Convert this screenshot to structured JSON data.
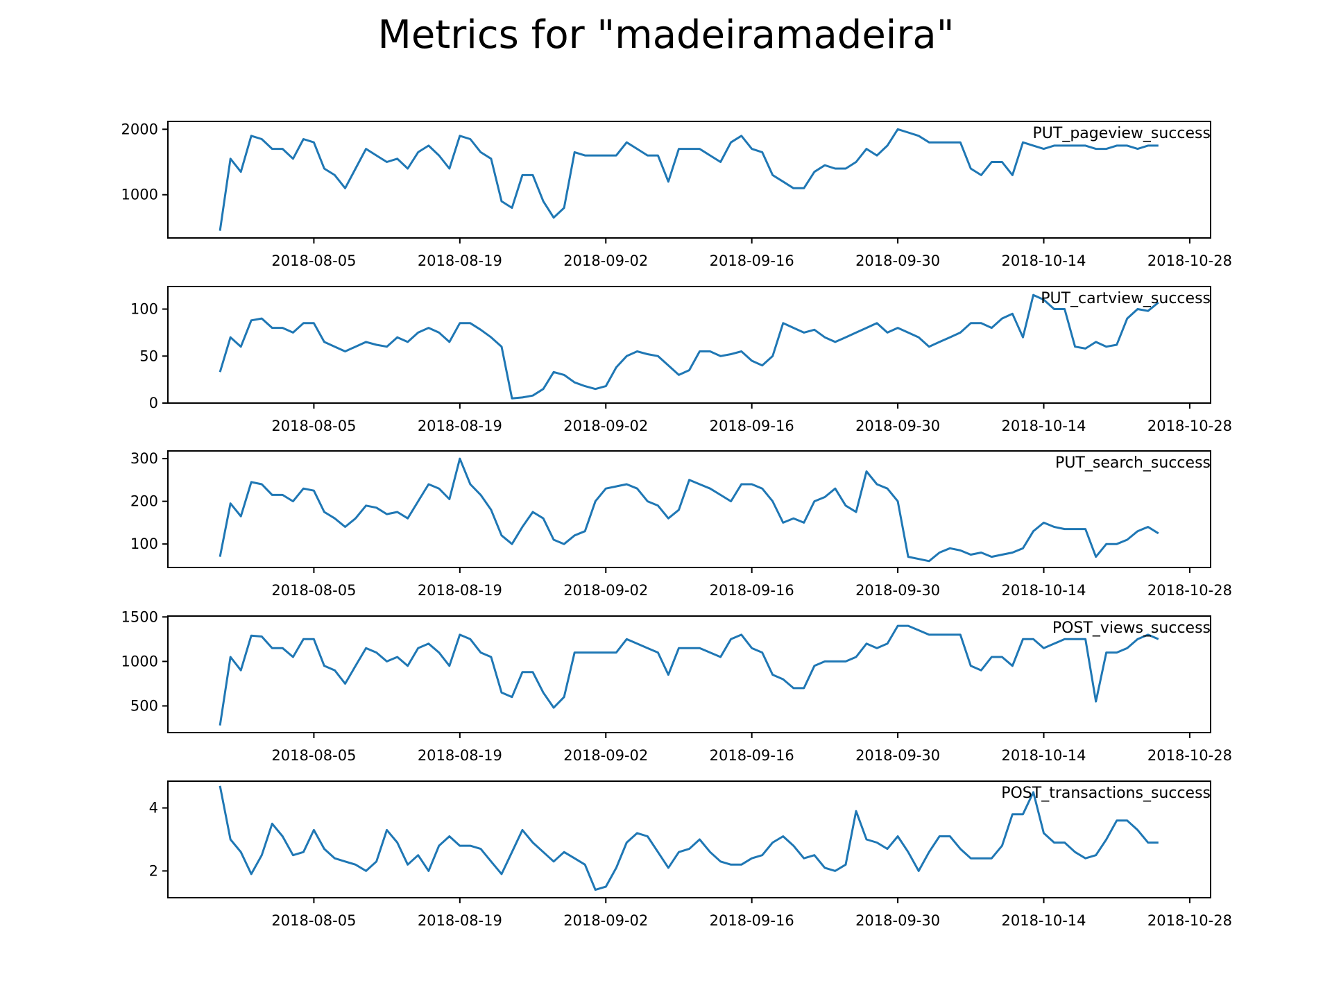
{
  "title": "Metrics for \"madeiramadeira\"",
  "colors": {
    "line": "#1f77b4",
    "axis": "#000000"
  },
  "chart_data": [
    {
      "type": "line",
      "name": "PUT_pageview_success",
      "x_ticks": [
        "2018-08-05",
        "2018-08-19",
        "2018-09-02",
        "2018-09-16",
        "2018-09-30",
        "2018-10-14",
        "2018-10-28"
      ],
      "y_ticks": [
        1000,
        2000
      ],
      "ylim": [
        340,
        2120
      ],
      "x_range": [
        "2018-07-22",
        "2018-10-30"
      ],
      "x": [
        "2018-07-27",
        "2018-07-28",
        "2018-07-29",
        "2018-07-30",
        "2018-07-31",
        "2018-08-01",
        "2018-08-02",
        "2018-08-03",
        "2018-08-04",
        "2018-08-05",
        "2018-08-06",
        "2018-08-07",
        "2018-08-08",
        "2018-08-09",
        "2018-08-10",
        "2018-08-11",
        "2018-08-12",
        "2018-08-13",
        "2018-08-14",
        "2018-08-15",
        "2018-08-16",
        "2018-08-17",
        "2018-08-18",
        "2018-08-19",
        "2018-08-20",
        "2018-08-21",
        "2018-08-22",
        "2018-08-23",
        "2018-08-24",
        "2018-08-25",
        "2018-08-26",
        "2018-08-27",
        "2018-08-28",
        "2018-08-29",
        "2018-08-30",
        "2018-08-31",
        "2018-09-01",
        "2018-09-02",
        "2018-09-03",
        "2018-09-04",
        "2018-09-05",
        "2018-09-06",
        "2018-09-07",
        "2018-09-08",
        "2018-09-09",
        "2018-09-10",
        "2018-09-11",
        "2018-09-12",
        "2018-09-13",
        "2018-09-14",
        "2018-09-15",
        "2018-09-16",
        "2018-09-17",
        "2018-09-18",
        "2018-09-19",
        "2018-09-20",
        "2018-09-21",
        "2018-09-22",
        "2018-09-23",
        "2018-09-24",
        "2018-09-25",
        "2018-09-26",
        "2018-09-27",
        "2018-09-28",
        "2018-09-29",
        "2018-09-30",
        "2018-10-01",
        "2018-10-02",
        "2018-10-03",
        "2018-10-04",
        "2018-10-05",
        "2018-10-06",
        "2018-10-07",
        "2018-10-08",
        "2018-10-09",
        "2018-10-10",
        "2018-10-11",
        "2018-10-12",
        "2018-10-13",
        "2018-10-14",
        "2018-10-15",
        "2018-10-16",
        "2018-10-17",
        "2018-10-18",
        "2018-10-19",
        "2018-10-20",
        "2018-10-21",
        "2018-10-22",
        "2018-10-23",
        "2018-10-24",
        "2018-10-25"
      ],
      "values": [
        450,
        1550,
        1350,
        1900,
        1850,
        1700,
        1700,
        1550,
        1850,
        1800,
        1400,
        1300,
        1100,
        1400,
        1700,
        1600,
        1500,
        1550,
        1400,
        1650,
        1750,
        1600,
        1400,
        1900,
        1850,
        1650,
        1550,
        900,
        800,
        1300,
        1300,
        900,
        650,
        800,
        1650,
        1600,
        1600,
        1600,
        1600,
        1800,
        1700,
        1600,
        1600,
        1200,
        1700,
        1700,
        1700,
        1600,
        1500,
        1800,
        1900,
        1700,
        1650,
        1300,
        1200,
        1100,
        1100,
        1350,
        1450,
        1400,
        1400,
        1500,
        1700,
        1600,
        1750,
        2000,
        1950,
        1900,
        1800,
        1800,
        1800,
        1800,
        1400,
        1300,
        1500,
        1500,
        1300,
        1800,
        1750,
        1700,
        1750,
        1750,
        1750,
        1750,
        1700,
        1700,
        1750,
        1750,
        1700,
        1750,
        1750
      ]
    },
    {
      "type": "line",
      "name": "PUT_cartview_success",
      "x_ticks": [
        "2018-08-05",
        "2018-08-19",
        "2018-09-02",
        "2018-09-16",
        "2018-09-30",
        "2018-10-14",
        "2018-10-28"
      ],
      "y_ticks": [
        0,
        50,
        100
      ],
      "ylim": [
        0,
        124
      ],
      "x_range": [
        "2018-07-22",
        "2018-10-30"
      ],
      "x": [
        "2018-07-27",
        "2018-07-28",
        "2018-07-29",
        "2018-07-30",
        "2018-07-31",
        "2018-08-01",
        "2018-08-02",
        "2018-08-03",
        "2018-08-04",
        "2018-08-05",
        "2018-08-06",
        "2018-08-07",
        "2018-08-08",
        "2018-08-09",
        "2018-08-10",
        "2018-08-11",
        "2018-08-12",
        "2018-08-13",
        "2018-08-14",
        "2018-08-15",
        "2018-08-16",
        "2018-08-17",
        "2018-08-18",
        "2018-08-19",
        "2018-08-20",
        "2018-08-21",
        "2018-08-22",
        "2018-08-23",
        "2018-08-24",
        "2018-08-25",
        "2018-08-26",
        "2018-08-27",
        "2018-08-28",
        "2018-08-29",
        "2018-08-30",
        "2018-08-31",
        "2018-09-01",
        "2018-09-02",
        "2018-09-03",
        "2018-09-04",
        "2018-09-05",
        "2018-09-06",
        "2018-09-07",
        "2018-09-08",
        "2018-09-09",
        "2018-09-10",
        "2018-09-11",
        "2018-09-12",
        "2018-09-13",
        "2018-09-14",
        "2018-09-15",
        "2018-09-16",
        "2018-09-17",
        "2018-09-18",
        "2018-09-19",
        "2018-09-20",
        "2018-09-21",
        "2018-09-22",
        "2018-09-23",
        "2018-09-24",
        "2018-09-25",
        "2018-09-26",
        "2018-09-27",
        "2018-09-28",
        "2018-09-29",
        "2018-09-30",
        "2018-10-01",
        "2018-10-02",
        "2018-10-03",
        "2018-10-04",
        "2018-10-05",
        "2018-10-06",
        "2018-10-07",
        "2018-10-08",
        "2018-10-09",
        "2018-10-10",
        "2018-10-11",
        "2018-10-12",
        "2018-10-13",
        "2018-10-14",
        "2018-10-15",
        "2018-10-16",
        "2018-10-17",
        "2018-10-18",
        "2018-10-19",
        "2018-10-20",
        "2018-10-21",
        "2018-10-22",
        "2018-10-23",
        "2018-10-24",
        "2018-10-25"
      ],
      "values": [
        33,
        70,
        60,
        88,
        90,
        80,
        80,
        75,
        85,
        85,
        65,
        60,
        55,
        60,
        65,
        62,
        60,
        70,
        65,
        75,
        80,
        75,
        65,
        85,
        85,
        78,
        70,
        60,
        5,
        6,
        8,
        15,
        33,
        30,
        22,
        18,
        15,
        18,
        38,
        50,
        55,
        52,
        50,
        40,
        30,
        35,
        55,
        55,
        50,
        52,
        55,
        45,
        40,
        50,
        85,
        80,
        75,
        78,
        70,
        65,
        70,
        75,
        80,
        85,
        75,
        80,
        75,
        70,
        60,
        65,
        70,
        75,
        85,
        85,
        80,
        90,
        95,
        70,
        115,
        110,
        100,
        100,
        60,
        58,
        65,
        60,
        62,
        90,
        100,
        98,
        107
      ]
    },
    {
      "type": "line",
      "name": "PUT_search_success",
      "x_ticks": [
        "2018-08-05",
        "2018-08-19",
        "2018-09-02",
        "2018-09-16",
        "2018-09-30",
        "2018-10-14",
        "2018-10-28"
      ],
      "y_ticks": [
        100,
        200,
        300
      ],
      "ylim": [
        45,
        318
      ],
      "x_range": [
        "2018-07-22",
        "2018-10-30"
      ],
      "x": [
        "2018-07-27",
        "2018-07-28",
        "2018-07-29",
        "2018-07-30",
        "2018-07-31",
        "2018-08-01",
        "2018-08-02",
        "2018-08-03",
        "2018-08-04",
        "2018-08-05",
        "2018-08-06",
        "2018-08-07",
        "2018-08-08",
        "2018-08-09",
        "2018-08-10",
        "2018-08-11",
        "2018-08-12",
        "2018-08-13",
        "2018-08-14",
        "2018-08-15",
        "2018-08-16",
        "2018-08-17",
        "2018-08-18",
        "2018-08-19",
        "2018-08-20",
        "2018-08-21",
        "2018-08-22",
        "2018-08-23",
        "2018-08-24",
        "2018-08-25",
        "2018-08-26",
        "2018-08-27",
        "2018-08-28",
        "2018-08-29",
        "2018-08-30",
        "2018-08-31",
        "2018-09-01",
        "2018-09-02",
        "2018-09-03",
        "2018-09-04",
        "2018-09-05",
        "2018-09-06",
        "2018-09-07",
        "2018-09-08",
        "2018-09-09",
        "2018-09-10",
        "2018-09-11",
        "2018-09-12",
        "2018-09-13",
        "2018-09-14",
        "2018-09-15",
        "2018-09-16",
        "2018-09-17",
        "2018-09-18",
        "2018-09-19",
        "2018-09-20",
        "2018-09-21",
        "2018-09-22",
        "2018-09-23",
        "2018-09-24",
        "2018-09-25",
        "2018-09-26",
        "2018-09-27",
        "2018-09-28",
        "2018-09-29",
        "2018-09-30",
        "2018-10-01",
        "2018-10-02",
        "2018-10-03",
        "2018-10-04",
        "2018-10-05",
        "2018-10-06",
        "2018-10-07",
        "2018-10-08",
        "2018-10-09",
        "2018-10-10",
        "2018-10-11",
        "2018-10-12",
        "2018-10-13",
        "2018-10-14",
        "2018-10-15",
        "2018-10-16",
        "2018-10-17",
        "2018-10-18",
        "2018-10-19",
        "2018-10-20",
        "2018-10-21",
        "2018-10-22",
        "2018-10-23",
        "2018-10-24",
        "2018-10-25"
      ],
      "values": [
        70,
        195,
        165,
        245,
        240,
        215,
        215,
        200,
        230,
        225,
        175,
        160,
        140,
        160,
        190,
        185,
        170,
        175,
        160,
        200,
        240,
        230,
        205,
        300,
        240,
        215,
        180,
        120,
        100,
        140,
        175,
        160,
        110,
        100,
        120,
        130,
        200,
        230,
        235,
        240,
        230,
        200,
        190,
        160,
        180,
        250,
        240,
        230,
        215,
        200,
        240,
        240,
        230,
        200,
        150,
        160,
        150,
        200,
        210,
        230,
        190,
        175,
        270,
        240,
        230,
        200,
        70,
        65,
        60,
        80,
        90,
        85,
        75,
        80,
        70,
        75,
        80,
        90,
        130,
        150,
        140,
        135,
        135,
        135,
        70,
        100,
        100,
        110,
        130,
        140,
        125
      ]
    },
    {
      "type": "line",
      "name": "POST_views_success",
      "x_ticks": [
        "2018-08-05",
        "2018-08-19",
        "2018-09-02",
        "2018-09-16",
        "2018-09-30",
        "2018-10-14",
        "2018-10-28"
      ],
      "y_ticks": [
        500,
        1000,
        1500
      ],
      "ylim": [
        200,
        1510
      ],
      "x_range": [
        "2018-07-22",
        "2018-10-30"
      ],
      "x": [
        "2018-07-27",
        "2018-07-28",
        "2018-07-29",
        "2018-07-30",
        "2018-07-31",
        "2018-08-01",
        "2018-08-02",
        "2018-08-03",
        "2018-08-04",
        "2018-08-05",
        "2018-08-06",
        "2018-08-07",
        "2018-08-08",
        "2018-08-09",
        "2018-08-10",
        "2018-08-11",
        "2018-08-12",
        "2018-08-13",
        "2018-08-14",
        "2018-08-15",
        "2018-08-16",
        "2018-08-17",
        "2018-08-18",
        "2018-08-19",
        "2018-08-20",
        "2018-08-21",
        "2018-08-22",
        "2018-08-23",
        "2018-08-24",
        "2018-08-25",
        "2018-08-26",
        "2018-08-27",
        "2018-08-28",
        "2018-08-29",
        "2018-08-30",
        "2018-08-31",
        "2018-09-01",
        "2018-09-02",
        "2018-09-03",
        "2018-09-04",
        "2018-09-05",
        "2018-09-06",
        "2018-09-07",
        "2018-09-08",
        "2018-09-09",
        "2018-09-10",
        "2018-09-11",
        "2018-09-12",
        "2018-09-13",
        "2018-09-14",
        "2018-09-15",
        "2018-09-16",
        "2018-09-17",
        "2018-09-18",
        "2018-09-19",
        "2018-09-20",
        "2018-09-21",
        "2018-09-22",
        "2018-09-23",
        "2018-09-24",
        "2018-09-25",
        "2018-09-26",
        "2018-09-27",
        "2018-09-28",
        "2018-09-29",
        "2018-09-30",
        "2018-10-01",
        "2018-10-02",
        "2018-10-03",
        "2018-10-04",
        "2018-10-05",
        "2018-10-06",
        "2018-10-07",
        "2018-10-08",
        "2018-10-09",
        "2018-10-10",
        "2018-10-11",
        "2018-10-12",
        "2018-10-13",
        "2018-10-14",
        "2018-10-15",
        "2018-10-16",
        "2018-10-17",
        "2018-10-18",
        "2018-10-19",
        "2018-10-20",
        "2018-10-21",
        "2018-10-22",
        "2018-10-23",
        "2018-10-24",
        "2018-10-25"
      ],
      "values": [
        280,
        1050,
        900,
        1290,
        1280,
        1150,
        1150,
        1050,
        1250,
        1250,
        950,
        900,
        750,
        950,
        1150,
        1100,
        1000,
        1050,
        950,
        1150,
        1200,
        1100,
        950,
        1300,
        1250,
        1100,
        1050,
        650,
        600,
        880,
        880,
        650,
        480,
        600,
        1100,
        1100,
        1100,
        1100,
        1100,
        1250,
        1200,
        1150,
        1100,
        850,
        1150,
        1150,
        1150,
        1100,
        1050,
        1250,
        1300,
        1150,
        1100,
        850,
        800,
        700,
        700,
        950,
        1000,
        1000,
        1000,
        1050,
        1200,
        1150,
        1200,
        1400,
        1400,
        1350,
        1300,
        1300,
        1300,
        1300,
        950,
        900,
        1050,
        1050,
        950,
        1250,
        1250,
        1150,
        1200,
        1250,
        1250,
        1250,
        550,
        1100,
        1100,
        1150,
        1250,
        1300,
        1250
      ]
    },
    {
      "type": "line",
      "name": "POST_transactions_success",
      "x_ticks": [
        "2018-08-05",
        "2018-08-19",
        "2018-09-02",
        "2018-09-16",
        "2018-09-30",
        "2018-10-14",
        "2018-10-28"
      ],
      "y_ticks": [
        2,
        4
      ],
      "ylim": [
        1.15,
        4.85
      ],
      "x_range": [
        "2018-07-22",
        "2018-10-30"
      ],
      "x": [
        "2018-07-27",
        "2018-07-28",
        "2018-07-29",
        "2018-07-30",
        "2018-07-31",
        "2018-08-01",
        "2018-08-02",
        "2018-08-03",
        "2018-08-04",
        "2018-08-05",
        "2018-08-06",
        "2018-08-07",
        "2018-08-08",
        "2018-08-09",
        "2018-08-10",
        "2018-08-11",
        "2018-08-12",
        "2018-08-13",
        "2018-08-14",
        "2018-08-15",
        "2018-08-16",
        "2018-08-17",
        "2018-08-18",
        "2018-08-19",
        "2018-08-20",
        "2018-08-21",
        "2018-08-22",
        "2018-08-23",
        "2018-08-24",
        "2018-08-25",
        "2018-08-26",
        "2018-08-27",
        "2018-08-28",
        "2018-08-29",
        "2018-08-30",
        "2018-08-31",
        "2018-09-01",
        "2018-09-02",
        "2018-09-03",
        "2018-09-04",
        "2018-09-05",
        "2018-09-06",
        "2018-09-07",
        "2018-09-08",
        "2018-09-09",
        "2018-09-10",
        "2018-09-11",
        "2018-09-12",
        "2018-09-13",
        "2018-09-14",
        "2018-09-15",
        "2018-09-16",
        "2018-09-17",
        "2018-09-18",
        "2018-09-19",
        "2018-09-20",
        "2018-09-21",
        "2018-09-22",
        "2018-09-23",
        "2018-09-24",
        "2018-09-25",
        "2018-09-26",
        "2018-09-27",
        "2018-09-28",
        "2018-09-29",
        "2018-09-30",
        "2018-10-01",
        "2018-10-02",
        "2018-10-03",
        "2018-10-04",
        "2018-10-05",
        "2018-10-06",
        "2018-10-07",
        "2018-10-08",
        "2018-10-09",
        "2018-10-10",
        "2018-10-11",
        "2018-10-12",
        "2018-10-13",
        "2018-10-14",
        "2018-10-15",
        "2018-10-16",
        "2018-10-17",
        "2018-10-18",
        "2018-10-19",
        "2018-10-20",
        "2018-10-21",
        "2018-10-22",
        "2018-10-23",
        "2018-10-24",
        "2018-10-25"
      ],
      "values": [
        4.7,
        3.0,
        2.6,
        1.9,
        2.5,
        3.5,
        3.1,
        2.5,
        2.6,
        3.3,
        2.7,
        2.4,
        2.3,
        2.2,
        2.0,
        2.3,
        3.3,
        2.9,
        2.2,
        2.5,
        2.0,
        2.8,
        3.1,
        2.8,
        2.8,
        2.7,
        2.3,
        1.9,
        2.6,
        3.3,
        2.9,
        2.6,
        2.3,
        2.6,
        2.4,
        2.2,
        1.4,
        1.5,
        2.1,
        2.9,
        3.2,
        3.1,
        2.6,
        2.1,
        2.6,
        2.7,
        3.0,
        2.6,
        2.3,
        2.2,
        2.2,
        2.4,
        2.5,
        2.9,
        3.1,
        2.8,
        2.4,
        2.5,
        2.1,
        2.0,
        2.2,
        3.9,
        3.0,
        2.9,
        2.7,
        3.1,
        2.6,
        2.0,
        2.6,
        3.1,
        3.1,
        2.7,
        2.4,
        2.4,
        2.4,
        2.8,
        3.8,
        3.8,
        4.5,
        3.2,
        2.9,
        2.9,
        2.6,
        2.4,
        2.5,
        3.0,
        3.6,
        3.6,
        3.3,
        2.9,
        2.9
      ]
    }
  ]
}
